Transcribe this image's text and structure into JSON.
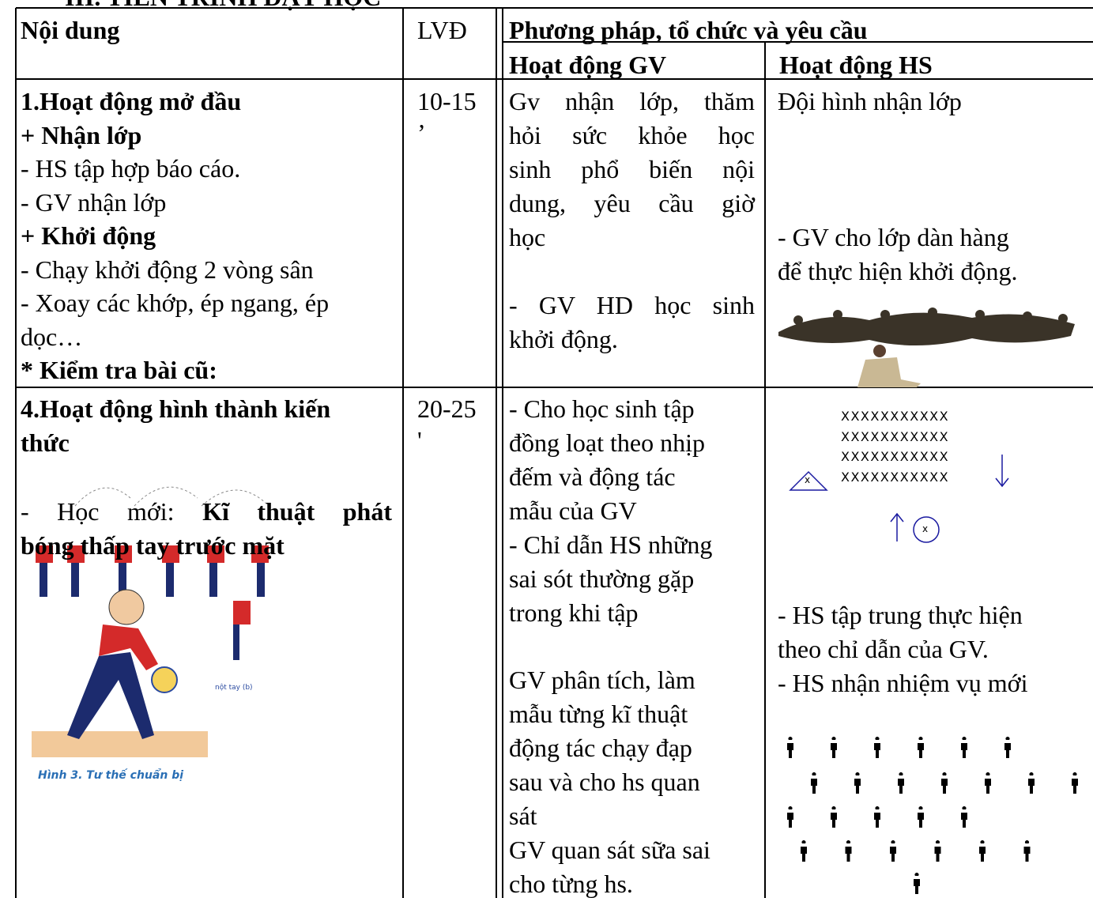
{
  "header": {
    "title": "III. TIẾN TRÌNH DẠY HỌC"
  },
  "table": {
    "headers": {
      "content": "Nội dung",
      "time": "LVĐ",
      "method": "Phương pháp, tổ chức và yêu cầu",
      "teacher": "Hoạt động GV",
      "student": "Hoạt động HS"
    },
    "rows": [
      {
        "content": [
          "1.Hoạt động mở đầu",
          "+ Nhận lớp",
          "- HS tập hợp báo cáo.",
          "- GV nhận lớp",
          "+ Khởi động",
          "- Chạy khởi động 2 vòng sân",
          "- Xoay các khớp, ép ngang, ép",
          "dọc…",
          "* Kiểm tra bài cũ:"
        ],
        "time": [
          "10-15",
          "’"
        ],
        "teacher": [
          [
            "Gv nhận lớp, thăm",
            "hỏi sức khỏe học",
            "sinh phổ biến nội",
            "dung, yêu cầu giờ",
            "học"
          ],
          [
            "- GV HD học sinh",
            "khởi động."
          ]
        ],
        "student": [
          [
            "Đội hình nhận lớp"
          ],
          [
            "- GV cho lớp dàn hàng",
            "để thực hiện khởi động."
          ]
        ]
      },
      {
        "content": [
          "4.Hoạt động hình thành kiến",
          "thức"
        ],
        "lesson": {
          "label": "- Học mới:",
          "topic": [
            "Kĩ thuật phát",
            "bóng thấp tay trước mặt"
          ]
        },
        "figure": {
          "caption": "Hình 3. Tư thế chuẩn bị",
          "note": "nột tay (b)"
        },
        "time": [
          "20-25",
          "'"
        ],
        "teacher": [
          [
            "- Cho học sinh tập",
            "đồng loạt theo nhịp",
            "đếm và động tác",
            "mẫu của GV",
            "- Chỉ dẫn HS những",
            "sai sót thường gặp",
            "trong khi tập"
          ],
          [
            "GV phân tích, làm",
            "mẫu từng kĩ thuật",
            "động tác chạy đạp",
            "sau và cho hs quan",
            "sát",
            "GV quan sát sữa sai",
            "cho từng hs."
          ]
        ],
        "student": {
          "formation": [
            "XXXXXXXXXXX",
            "XXXXXXXXXXX",
            "XXXXXXXXXXX",
            "XXXXXXXXXXX"
          ],
          "marker": "x",
          "coach": "x",
          "notes": [
            "- HS tập trung thực hiện",
            "theo chỉ dẫn của GV.",
            "- HS nhận nhiệm vụ mới"
          ]
        }
      }
    ]
  }
}
